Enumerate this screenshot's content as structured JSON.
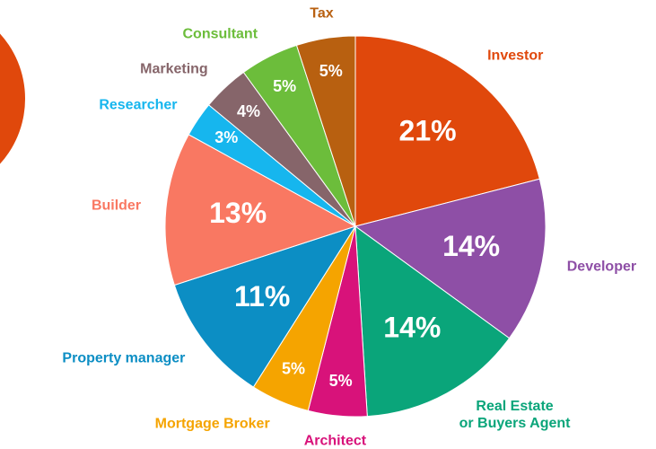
{
  "chart_data": {
    "type": "pie",
    "categories": [
      "Investor",
      "Developer",
      "Real Estate\nor Buyers Agent",
      "Architect",
      "Mortgage Broker",
      "Property manager",
      "Builder",
      "Researcher",
      "Marketing",
      "Consultant",
      "Tax"
    ],
    "values": [
      21,
      14,
      14,
      5,
      5,
      11,
      13,
      3,
      4,
      5,
      5
    ],
    "value_labels": [
      "21%",
      "14%",
      "14%",
      "5%",
      "5%",
      "11%",
      "13%",
      "3%",
      "4%",
      "5%",
      "5%"
    ],
    "colors": [
      "#e0480c",
      "#8e4fa6",
      "#0aa57a",
      "#d8127a",
      "#f5a400",
      "#0c8ec4",
      "#f97862",
      "#16b6ee",
      "#86656a",
      "#6cbd3b",
      "#b86010"
    ]
  }
}
